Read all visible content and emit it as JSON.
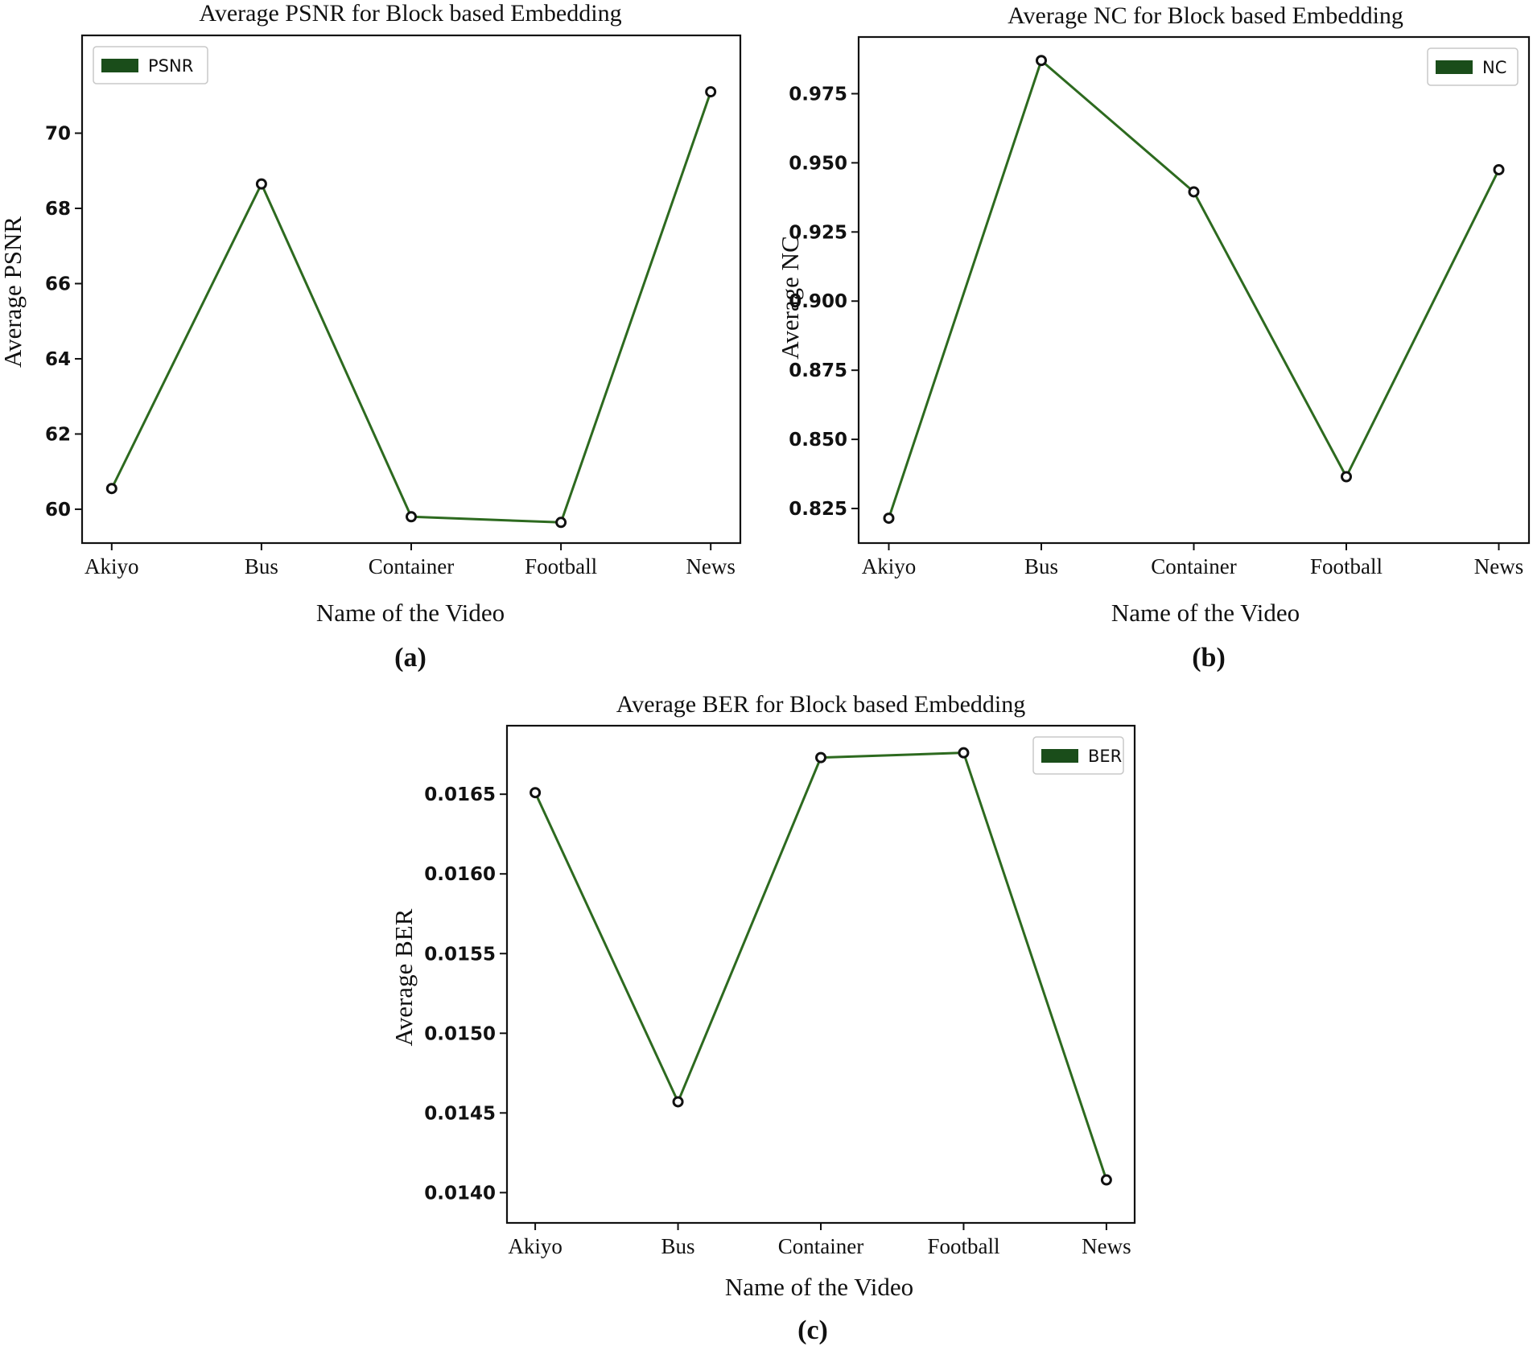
{
  "chart_data": [
    {
      "type": "line",
      "title": "Average PSNR for Block based Embedding",
      "xlabel": "Name of the Video",
      "ylabel": "Average PSNR",
      "caption": "(a)",
      "categories": [
        "Akiyo",
        "Bus",
        "Container",
        "Football",
        "News"
      ],
      "series": [
        {
          "name": "PSNR",
          "values": [
            60.55,
            68.65,
            59.8,
            59.65,
            71.1
          ]
        }
      ],
      "ylim": [
        59.1,
        72.6
      ],
      "yticks": [
        60,
        62,
        64,
        66,
        68,
        70
      ],
      "ytick_labels": [
        "60",
        "62",
        "64",
        "66",
        "68",
        "70"
      ],
      "legend_position": "top-left",
      "grid": false,
      "color": "#2d6a1f",
      "legend_color": "#1a4d1a"
    },
    {
      "type": "line",
      "title": "Average NC for Block based Embedding",
      "xlabel": "Name of the Video",
      "ylabel": "Average NC",
      "caption": "(b)",
      "categories": [
        "Akiyo",
        "Bus",
        "Container",
        "Football",
        "News"
      ],
      "series": [
        {
          "name": "NC",
          "values": [
            0.8215,
            0.987,
            0.9395,
            0.8365,
            0.9475
          ]
        }
      ],
      "ylim": [
        0.8125,
        0.9955
      ],
      "yticks": [
        0.825,
        0.85,
        0.875,
        0.9,
        0.925,
        0.95,
        0.975
      ],
      "ytick_labels": [
        "0.825",
        "0.850",
        "0.875",
        "0.900",
        "0.925",
        "0.950",
        "0.975"
      ],
      "legend_position": "top-right",
      "grid": false,
      "color": "#2d6a1f",
      "legend_color": "#1a4d1a"
    },
    {
      "type": "line",
      "title": "Average BER for Block based Embedding",
      "xlabel": "Name of the Video",
      "ylabel": "Average BER",
      "caption": "(c)",
      "categories": [
        "Akiyo",
        "Bus",
        "Container",
        "Football",
        "News"
      ],
      "series": [
        {
          "name": "BER",
          "values": [
            0.01651,
            0.01457,
            0.01673,
            0.01676,
            0.01408
          ]
        }
      ],
      "ylim": [
        0.01381,
        0.01693
      ],
      "yticks": [
        0.014,
        0.0145,
        0.015,
        0.0155,
        0.016,
        0.0165
      ],
      "ytick_labels": [
        "0.0140",
        "0.0145",
        "0.0150",
        "0.0155",
        "0.0160",
        "0.0165"
      ],
      "legend_position": "top-right",
      "grid": false,
      "color": "#2d6a1f",
      "legend_color": "#1a4d1a"
    }
  ]
}
